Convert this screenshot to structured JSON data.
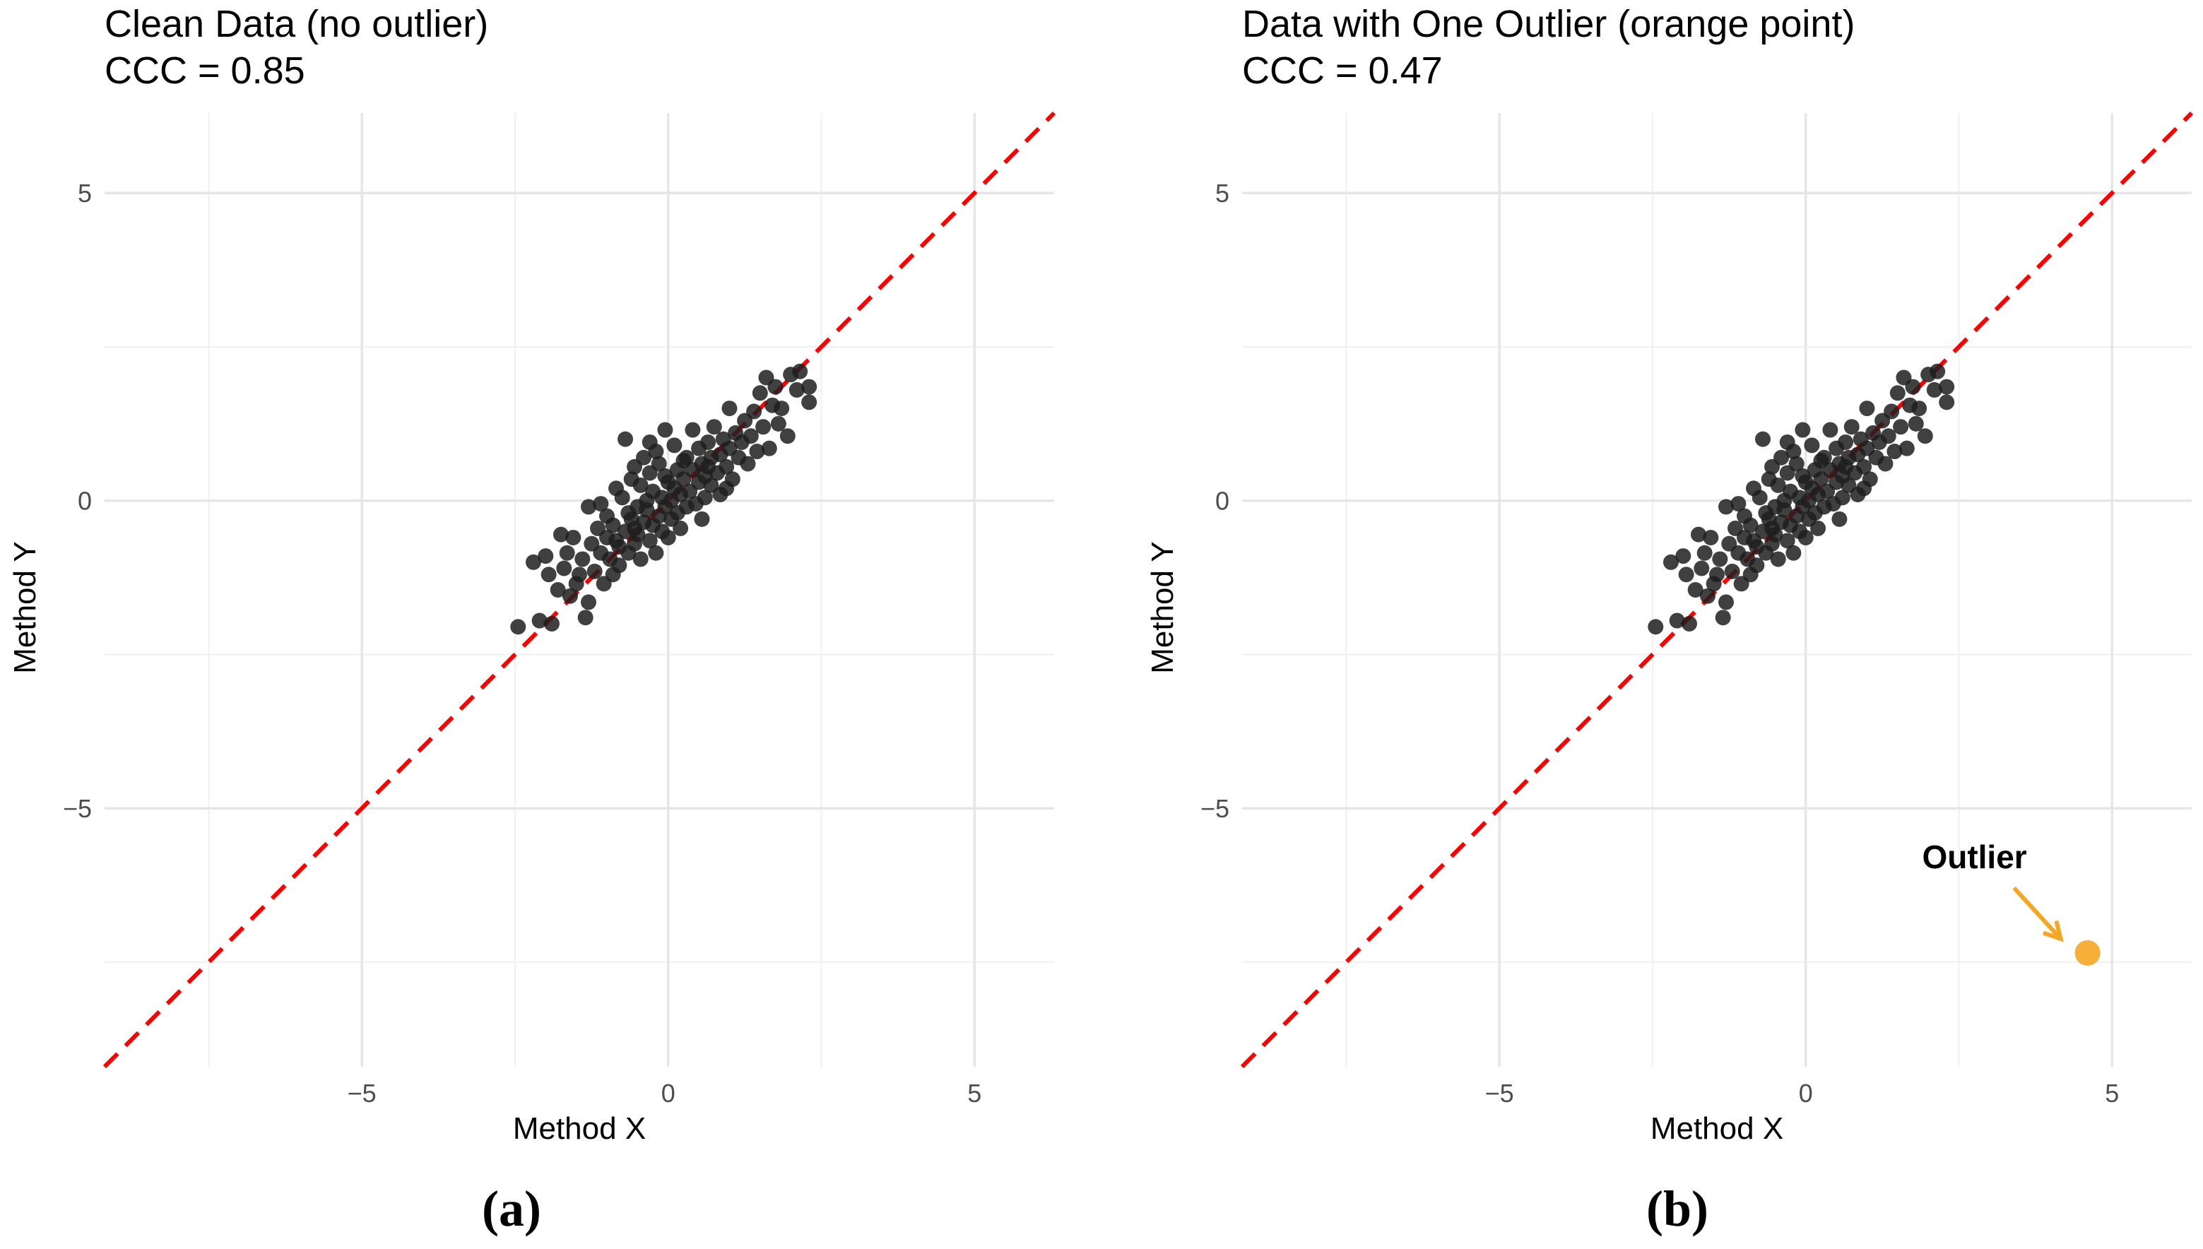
{
  "chart_data": [
    {
      "type": "scatter",
      "title": "Clean Data (no outlier)",
      "subtitle": "CCC = 0.85",
      "xlabel": "Method X",
      "ylabel": "Method Y",
      "xlim": [
        -9.2,
        6.3
      ],
      "ylim": [
        -9.2,
        6.3
      ],
      "xticks": [
        -5,
        0,
        5
      ],
      "yticks": [
        5,
        0,
        -5
      ],
      "xtick_labels": [
        "−5",
        "0",
        "5"
      ],
      "ytick_labels": [
        "5",
        "0",
        "−5"
      ],
      "grid": true,
      "reference_line": {
        "type": "identity",
        "label": "y = x",
        "color": "#ff0000",
        "style": "dashed"
      },
      "point_color": "#1f1f1f",
      "panel_label": "(a)",
      "points": [
        [
          -2.45,
          -2.05
        ],
        [
          -2.2,
          -1.0
        ],
        [
          -2.1,
          -1.95
        ],
        [
          -2.0,
          -0.9
        ],
        [
          -1.95,
          -1.2
        ],
        [
          -1.9,
          -2.0
        ],
        [
          -1.8,
          -1.45
        ],
        [
          -1.75,
          -0.55
        ],
        [
          -1.7,
          -1.1
        ],
        [
          -1.65,
          -0.85
        ],
        [
          -1.6,
          -1.55
        ],
        [
          -1.55,
          -0.6
        ],
        [
          -1.5,
          -1.35
        ],
        [
          -1.45,
          -1.2
        ],
        [
          -1.4,
          -0.95
        ],
        [
          -1.35,
          -1.9
        ],
        [
          -1.3,
          -1.65
        ],
        [
          -1.3,
          -0.1
        ],
        [
          -1.25,
          -0.7
        ],
        [
          -1.2,
          -1.15
        ],
        [
          -1.15,
          -0.45
        ],
        [
          -1.1,
          -0.85
        ],
        [
          -1.1,
          -0.05
        ],
        [
          -1.05,
          -1.35
        ],
        [
          -1.0,
          -0.6
        ],
        [
          -0.95,
          -0.95
        ],
        [
          -0.9,
          -1.2
        ],
        [
          -0.9,
          -0.4
        ],
        [
          -0.85,
          0.2
        ],
        [
          -0.8,
          -0.75
        ],
        [
          -0.8,
          -1.05
        ],
        [
          -0.75,
          0.05
        ],
        [
          -0.7,
          -0.5
        ],
        [
          -0.7,
          1.0
        ],
        [
          -0.65,
          -0.85
        ],
        [
          -0.6,
          -0.3
        ],
        [
          -0.6,
          0.35
        ],
        [
          -0.55,
          -0.7
        ],
        [
          -0.55,
          0.55
        ],
        [
          -0.5,
          -0.1
        ],
        [
          -0.5,
          -0.55
        ],
        [
          -0.45,
          0.25
        ],
        [
          -0.45,
          -0.95
        ],
        [
          -0.4,
          0.7
        ],
        [
          -0.4,
          -0.35
        ],
        [
          -0.35,
          -0.15
        ],
        [
          -0.35,
          0.0
        ],
        [
          -0.3,
          -0.65
        ],
        [
          -0.3,
          0.45
        ],
        [
          -0.25,
          -0.4
        ],
        [
          -0.25,
          0.15
        ],
        [
          -0.2,
          -0.85
        ],
        [
          -0.2,
          0.8
        ],
        [
          -0.15,
          -0.25
        ],
        [
          -0.15,
          0.6
        ],
        [
          -0.1,
          -0.5
        ],
        [
          -0.1,
          0.05
        ],
        [
          -0.05,
          -0.1
        ],
        [
          -0.05,
          1.15
        ],
        [
          0.0,
          0.3
        ],
        [
          0.0,
          -0.6
        ],
        [
          0.05,
          0.0
        ],
        [
          0.05,
          -0.3
        ],
        [
          0.1,
          0.2
        ],
        [
          0.1,
          0.9
        ],
        [
          0.15,
          -0.2
        ],
        [
          0.15,
          0.5
        ],
        [
          0.2,
          0.1
        ],
        [
          0.2,
          -0.45
        ],
        [
          0.25,
          0.35
        ],
        [
          0.3,
          0.7
        ],
        [
          0.3,
          -0.1
        ],
        [
          0.35,
          0.15
        ],
        [
          0.4,
          1.15
        ],
        [
          0.4,
          0.5
        ],
        [
          0.45,
          -0.05
        ],
        [
          0.5,
          0.3
        ],
        [
          0.5,
          0.85
        ],
        [
          0.55,
          0.6
        ],
        [
          0.6,
          0.05
        ],
        [
          0.6,
          0.4
        ],
        [
          0.65,
          0.95
        ],
        [
          0.7,
          0.25
        ],
        [
          0.7,
          0.7
        ],
        [
          0.75,
          1.2
        ],
        [
          0.8,
          0.45
        ],
        [
          0.85,
          0.75
        ],
        [
          0.85,
          0.1
        ],
        [
          0.9,
          1.0
        ],
        [
          0.95,
          0.55
        ],
        [
          1.0,
          0.85
        ],
        [
          1.0,
          1.5
        ],
        [
          1.05,
          0.35
        ],
        [
          1.1,
          1.1
        ],
        [
          1.15,
          0.7
        ],
        [
          1.2,
          0.95
        ],
        [
          1.25,
          1.3
        ],
        [
          1.3,
          0.6
        ],
        [
          1.35,
          1.05
        ],
        [
          1.4,
          1.45
        ],
        [
          1.45,
          0.8
        ],
        [
          1.5,
          1.75
        ],
        [
          1.55,
          1.2
        ],
        [
          1.6,
          2.0
        ],
        [
          1.65,
          0.85
        ],
        [
          1.7,
          1.55
        ],
        [
          1.75,
          1.85
        ],
        [
          1.8,
          1.25
        ],
        [
          1.85,
          1.5
        ],
        [
          1.95,
          1.05
        ],
        [
          2.0,
          2.05
        ],
        [
          2.1,
          1.8
        ],
        [
          2.15,
          2.1
        ],
        [
          2.3,
          1.6
        ],
        [
          2.3,
          1.85
        ],
        [
          -0.85,
          -0.65
        ],
        [
          -0.65,
          -0.2
        ],
        [
          -0.05,
          0.4
        ],
        [
          0.25,
          0.65
        ],
        [
          0.55,
          -0.3
        ],
        [
          -1.0,
          -0.25
        ],
        [
          0.95,
          0.2
        ],
        [
          -0.3,
          0.95
        ],
        [
          0.65,
          0.55
        ],
        [
          -0.55,
          -0.45
        ]
      ]
    },
    {
      "type": "scatter",
      "title": "Data with One Outlier (orange point)",
      "subtitle": "CCC = 0.47",
      "xlabel": "Method X",
      "ylabel": "Method Y",
      "xlim": [
        -9.2,
        6.3
      ],
      "ylim": [
        -9.2,
        6.3
      ],
      "xticks": [
        -5,
        0,
        5
      ],
      "yticks": [
        5,
        0,
        -5
      ],
      "xtick_labels": [
        "−5",
        "0",
        "5"
      ],
      "ytick_labels": [
        "5",
        "0",
        "−5"
      ],
      "grid": true,
      "reference_line": {
        "type": "identity",
        "label": "y = x",
        "color": "#ff0000",
        "style": "dashed"
      },
      "point_color": "#1f1f1f",
      "panel_label": "(b)",
      "same_points_as_panel": 0,
      "outlier": {
        "x": 4.6,
        "y": -7.35,
        "color": "#f5a623",
        "label": "Outlier"
      }
    }
  ]
}
